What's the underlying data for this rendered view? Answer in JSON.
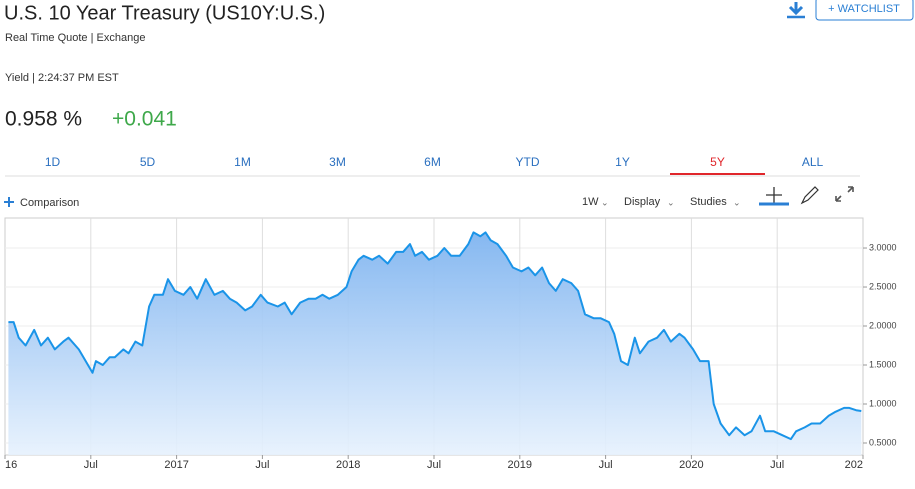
{
  "header": {
    "title": "U.S. 10 Year Treasury (US10Y:U.S.)",
    "subtitle": "Real Time Quote | Exchange",
    "watchlist": "+ WATCHLIST",
    "yield_label": "Yield | 2:24:37 PM EST",
    "price": "0.958 %",
    "change": "+0.041"
  },
  "tabs": [
    "1D",
    "5D",
    "1M",
    "3M",
    "6M",
    "YTD",
    "1Y",
    "5Y",
    "ALL"
  ],
  "active_tab": 7,
  "toolbar": {
    "comparison": "Comparison",
    "interval": "1W",
    "display": "Display",
    "studies": "Studies"
  },
  "chart_data": {
    "type": "area",
    "color": "#1a94e8",
    "x": [
      2016.02,
      2016.05,
      2016.08,
      2016.12,
      2016.17,
      2016.21,
      2016.25,
      2016.29,
      2016.34,
      2016.37,
      2016.43,
      2016.47,
      2016.51,
      2016.53,
      2016.57,
      2016.61,
      2016.64,
      2016.69,
      2016.72,
      2016.76,
      2016.8,
      2016.84,
      2016.87,
      2016.92,
      2016.95,
      2016.99,
      2017.04,
      2017.08,
      2017.12,
      2017.17,
      2017.22,
      2017.27,
      2017.31,
      2017.35,
      2017.4,
      2017.44,
      2017.49,
      2017.53,
      2017.59,
      2017.63,
      2017.67,
      2017.72,
      2017.77,
      2017.81,
      2017.85,
      2017.89,
      2017.94,
      2017.99,
      2018.02,
      2018.06,
      2018.09,
      2018.14,
      2018.18,
      2018.23,
      2018.28,
      2018.32,
      2018.36,
      2018.39,
      2018.43,
      2018.47,
      2018.52,
      2018.56,
      2018.6,
      2018.65,
      2018.7,
      2018.73,
      2018.77,
      2018.8,
      2018.83,
      2018.87,
      2018.92,
      2018.96,
      2019.01,
      2019.05,
      2019.09,
      2019.13,
      2019.17,
      2019.21,
      2019.25,
      2019.3,
      2019.34,
      2019.38,
      2019.43,
      2019.47,
      2019.52,
      2019.55,
      2019.59,
      2019.63,
      2019.67,
      2019.7,
      2019.75,
      2019.8,
      2019.84,
      2019.88,
      2019.93,
      2019.96,
      2020.01,
      2020.05,
      2020.1,
      2020.13,
      2020.17,
      2020.22,
      2020.26,
      2020.31,
      2020.35,
      2020.4,
      2020.43,
      2020.48,
      2020.53,
      2020.58,
      2020.61,
      2020.66,
      2020.7,
      2020.75,
      2020.8,
      2020.84,
      2020.89,
      2020.92,
      2020.96,
      2020.99
    ],
    "values": [
      2.05,
      2.05,
      1.85,
      1.75,
      1.95,
      1.75,
      1.85,
      1.7,
      1.8,
      1.85,
      1.7,
      1.55,
      1.4,
      1.55,
      1.5,
      1.6,
      1.6,
      1.7,
      1.65,
      1.8,
      1.75,
      2.25,
      2.4,
      2.4,
      2.6,
      2.45,
      2.4,
      2.5,
      2.35,
      2.6,
      2.4,
      2.45,
      2.35,
      2.3,
      2.2,
      2.25,
      2.4,
      2.3,
      2.25,
      2.3,
      2.15,
      2.3,
      2.35,
      2.35,
      2.4,
      2.35,
      2.4,
      2.5,
      2.7,
      2.85,
      2.9,
      2.85,
      2.9,
      2.8,
      2.95,
      2.95,
      3.05,
      2.9,
      2.95,
      2.85,
      2.9,
      3.0,
      2.9,
      2.9,
      3.05,
      3.2,
      3.15,
      3.2,
      3.1,
      3.05,
      2.9,
      2.75,
      2.7,
      2.75,
      2.65,
      2.75,
      2.55,
      2.45,
      2.6,
      2.55,
      2.45,
      2.15,
      2.1,
      2.1,
      2.05,
      1.9,
      1.55,
      1.5,
      1.85,
      1.65,
      1.8,
      1.85,
      1.95,
      1.8,
      1.9,
      1.85,
      1.7,
      1.55,
      1.55,
      1.0,
      0.75,
      0.6,
      0.7,
      0.6,
      0.65,
      0.85,
      0.65,
      0.65,
      0.6,
      0.55,
      0.65,
      0.7,
      0.75,
      0.75,
      0.85,
      0.9,
      0.95,
      0.95,
      0.92,
      0.91
    ],
    "xlim": [
      2016.0,
      2021.0
    ],
    "ylim": [
      0.346,
      3.385
    ],
    "xticks": [
      {
        "value": 2016,
        "label": "16"
      },
      {
        "value": 2016.5,
        "label": "Jul"
      },
      2017,
      {
        "value": 2017.5,
        "label": "Jul"
      },
      2018,
      {
        "value": 2018.5,
        "label": "Jul"
      },
      2019,
      {
        "value": 2019.5,
        "label": "Jul"
      },
      2020,
      {
        "value": 2020.5,
        "label": "Jul"
      },
      {
        "value": 2021,
        "label": "202"
      }
    ],
    "yticks": [
      {
        "value": 0.5,
        "label": "0.5000"
      },
      {
        "value": 1,
        "label": "1.0000"
      },
      {
        "value": 1.5,
        "label": "1.5000"
      },
      {
        "value": 2,
        "label": "2.0000"
      },
      {
        "value": 2.5,
        "label": "2.5000"
      },
      {
        "value": 3,
        "label": "3.0000"
      }
    ],
    "grid": true
  }
}
